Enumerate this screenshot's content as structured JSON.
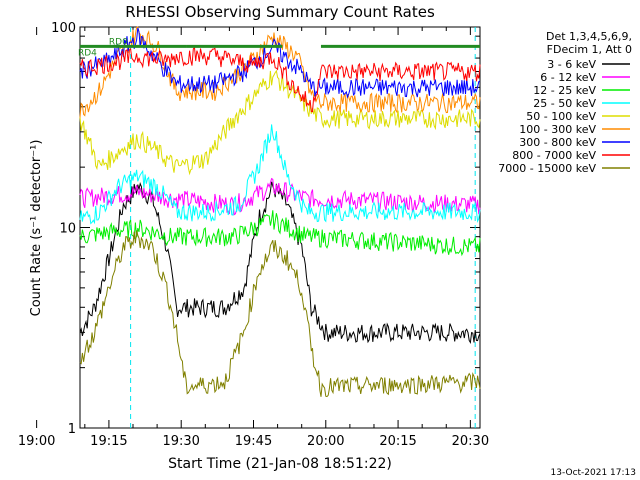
{
  "chart_data": {
    "type": "line",
    "title": "RHESSI Observing Summary Count Rates",
    "xlabel": "Start Time (21-Jan-08 18:51:22)",
    "ylabel": "Count Rate (s⁻¹ detector⁻¹)",
    "yscale": "log",
    "ylim": [
      1,
      100
    ],
    "xlim_minutes": [
      18.0,
      101.0
    ],
    "x_tick_labels": [
      "19:00",
      "19:15",
      "19:30",
      "19:45",
      "20:00",
      "20:15",
      "20:30"
    ],
    "y_tick_labels": [
      "1",
      "10",
      "100"
    ],
    "legend_header": [
      "Det 1,3,4,5,6,9,",
      "FDecim 1, Att 0"
    ],
    "legend_position": "right",
    "timestamp": "13-Oct-2021 17:13",
    "flags": {
      "labels": [
        "RD4",
        "RD0"
      ],
      "color": "#228b22"
    },
    "series": [
      {
        "name": "3 - 6 keV",
        "color": "#000000",
        "knots": [
          [
            18,
            3
          ],
          [
            21,
            4
          ],
          [
            24,
            7
          ],
          [
            27,
            13
          ],
          [
            30,
            16
          ],
          [
            33,
            14
          ],
          [
            36,
            8
          ],
          [
            38,
            4
          ],
          [
            48,
            4
          ],
          [
            52,
            5
          ],
          [
            55,
            11
          ],
          [
            58,
            16
          ],
          [
            61,
            13
          ],
          [
            64,
            8
          ],
          [
            66,
            4
          ],
          [
            69,
            3
          ],
          [
            101,
            3
          ]
        ]
      },
      {
        "name": "6 - 12 keV",
        "color": "#ff00ff",
        "knots": [
          [
            18,
            14
          ],
          [
            30,
            15
          ],
          [
            37,
            14
          ],
          [
            50,
            13
          ],
          [
            58,
            16
          ],
          [
            65,
            14
          ],
          [
            101,
            13
          ]
        ]
      },
      {
        "name": "12 - 25 keV",
        "color": "#00ee00",
        "knots": [
          [
            18,
            9
          ],
          [
            30,
            10
          ],
          [
            37,
            9
          ],
          [
            50,
            9
          ],
          [
            58,
            11
          ],
          [
            65,
            9
          ],
          [
            101,
            8
          ]
        ]
      },
      {
        "name": "25 - 50 keV",
        "color": "#00ffff",
        "knots": [
          [
            18,
            11
          ],
          [
            22,
            12
          ],
          [
            26,
            16
          ],
          [
            30,
            18
          ],
          [
            34,
            16
          ],
          [
            38,
            12
          ],
          [
            45,
            12
          ],
          [
            51,
            13
          ],
          [
            55,
            20
          ],
          [
            58,
            32
          ],
          [
            61,
            18
          ],
          [
            65,
            12
          ],
          [
            101,
            12
          ]
        ]
      },
      {
        "name": "50 - 100 keV",
        "color": "#dddd00",
        "knots": [
          [
            18,
            35
          ],
          [
            22,
            20
          ],
          [
            26,
            24
          ],
          [
            30,
            28
          ],
          [
            34,
            24
          ],
          [
            38,
            20
          ],
          [
            44,
            22
          ],
          [
            50,
            35
          ],
          [
            58,
            58
          ],
          [
            63,
            45
          ],
          [
            66,
            38
          ],
          [
            68,
            35
          ],
          [
            101,
            35
          ]
        ]
      },
      {
        "name": "100 - 300 keV",
        "color": "#ff8c00",
        "knots": [
          [
            18,
            38
          ],
          [
            22,
            48
          ],
          [
            26,
            72
          ],
          [
            30,
            95
          ],
          [
            34,
            80
          ],
          [
            38,
            48
          ],
          [
            46,
            48
          ],
          [
            52,
            62
          ],
          [
            58,
            90
          ],
          [
            63,
            72
          ],
          [
            66,
            46
          ],
          [
            68,
            42
          ],
          [
            101,
            42
          ]
        ]
      },
      {
        "name": "300 - 800 keV",
        "color": "#0000ff",
        "knots": [
          [
            18,
            60
          ],
          [
            24,
            68
          ],
          [
            30,
            90
          ],
          [
            36,
            60
          ],
          [
            38,
            52
          ],
          [
            46,
            52
          ],
          [
            52,
            60
          ],
          [
            58,
            80
          ],
          [
            64,
            60
          ],
          [
            66,
            50
          ],
          [
            101,
            50
          ]
        ]
      },
      {
        "name": "800 - 7000 keV",
        "color": "#ff0000",
        "knots": [
          [
            18,
            62
          ],
          [
            22,
            65
          ],
          [
            26,
            68
          ],
          [
            30,
            72
          ],
          [
            36,
            68
          ],
          [
            38,
            72
          ],
          [
            46,
            72
          ],
          [
            50,
            68
          ],
          [
            54,
            65
          ],
          [
            58,
            72
          ],
          [
            62,
            52
          ],
          [
            66,
            40
          ],
          [
            68,
            60
          ],
          [
            101,
            60
          ]
        ]
      },
      {
        "name": "7000 - 15000 keV",
        "color": "#808000",
        "knots": [
          [
            18,
            2.2
          ],
          [
            21,
            3
          ],
          [
            24,
            5
          ],
          [
            27,
            8
          ],
          [
            30,
            9
          ],
          [
            33,
            8
          ],
          [
            36,
            5
          ],
          [
            38,
            3
          ],
          [
            40,
            1.6
          ],
          [
            48,
            1.7
          ],
          [
            52,
            3
          ],
          [
            55,
            6
          ],
          [
            58,
            8
          ],
          [
            61,
            7
          ],
          [
            64,
            5
          ],
          [
            66,
            2.5
          ],
          [
            68,
            1.6
          ],
          [
            101,
            1.7
          ]
        ]
      }
    ]
  }
}
